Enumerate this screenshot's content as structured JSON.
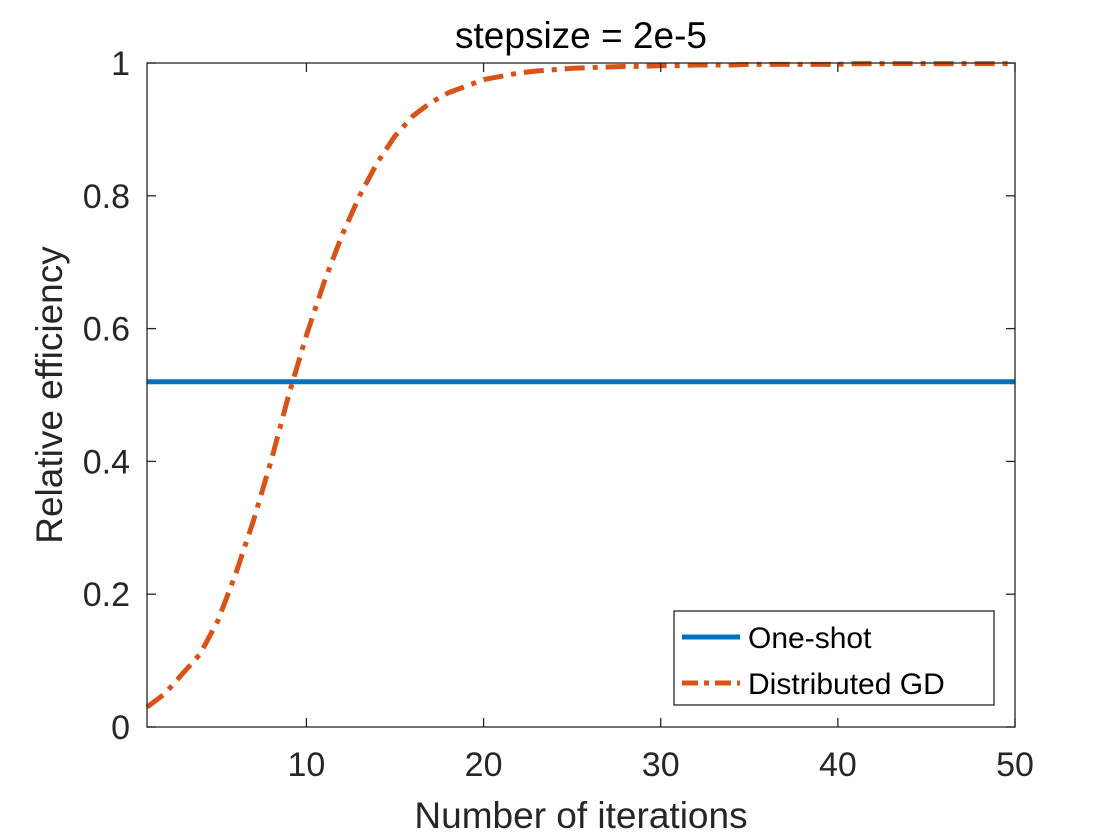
{
  "chart_data": {
    "type": "line",
    "title": "stepsize = 2e-5",
    "xlabel": "Number of iterations",
    "ylabel": "Relative efficiency",
    "xlim": [
      1,
      50
    ],
    "ylim": [
      0,
      1
    ],
    "xticks": [
      10,
      20,
      30,
      40,
      50
    ],
    "xtick_labels": [
      "10",
      "20",
      "30",
      "40",
      "50"
    ],
    "yticks": [
      0,
      0.2,
      0.4,
      0.6,
      0.8,
      1
    ],
    "ytick_labels": [
      "0",
      "0.2",
      "0.4",
      "0.6",
      "0.8",
      "1"
    ],
    "grid": false,
    "legend_position": "bottom-right",
    "x": [
      1,
      2,
      3,
      4,
      5,
      6,
      7,
      8,
      9,
      10,
      11,
      12,
      13,
      14,
      15,
      16,
      17,
      18,
      19,
      20,
      21,
      22,
      23,
      24,
      25,
      26,
      27,
      28,
      29,
      30,
      31,
      32,
      33,
      34,
      35,
      36,
      37,
      38,
      39,
      40,
      41,
      42,
      43,
      44,
      45,
      46,
      47,
      48,
      49,
      50
    ],
    "series": [
      {
        "name": "One-shot",
        "color": "#0072BD",
        "style": "solid",
        "values": [
          0.52,
          0.52,
          0.52,
          0.52,
          0.52,
          0.52,
          0.52,
          0.52,
          0.52,
          0.52,
          0.52,
          0.52,
          0.52,
          0.52,
          0.52,
          0.52,
          0.52,
          0.52,
          0.52,
          0.52,
          0.52,
          0.52,
          0.52,
          0.52,
          0.52,
          0.52,
          0.52,
          0.52,
          0.52,
          0.52,
          0.52,
          0.52,
          0.52,
          0.52,
          0.52,
          0.52,
          0.52,
          0.52,
          0.52,
          0.52,
          0.52,
          0.52,
          0.52,
          0.52,
          0.52,
          0.52,
          0.52,
          0.52,
          0.52,
          0.52
        ]
      },
      {
        "name": "Distributed GD",
        "color": "#D95319",
        "style": "dashdot",
        "values": [
          0.03,
          0.05,
          0.08,
          0.11,
          0.16,
          0.23,
          0.31,
          0.4,
          0.5,
          0.59,
          0.67,
          0.74,
          0.8,
          0.85,
          0.89,
          0.92,
          0.94,
          0.955,
          0.965,
          0.975,
          0.98,
          0.985,
          0.988,
          0.99,
          0.992,
          0.993,
          0.994,
          0.995,
          0.995,
          0.996,
          0.996,
          0.997,
          0.997,
          0.997,
          0.998,
          0.998,
          0.998,
          0.998,
          0.998,
          0.998,
          0.999,
          0.999,
          0.999,
          0.999,
          0.999,
          0.999,
          0.999,
          0.999,
          0.999,
          0.999
        ]
      }
    ]
  }
}
